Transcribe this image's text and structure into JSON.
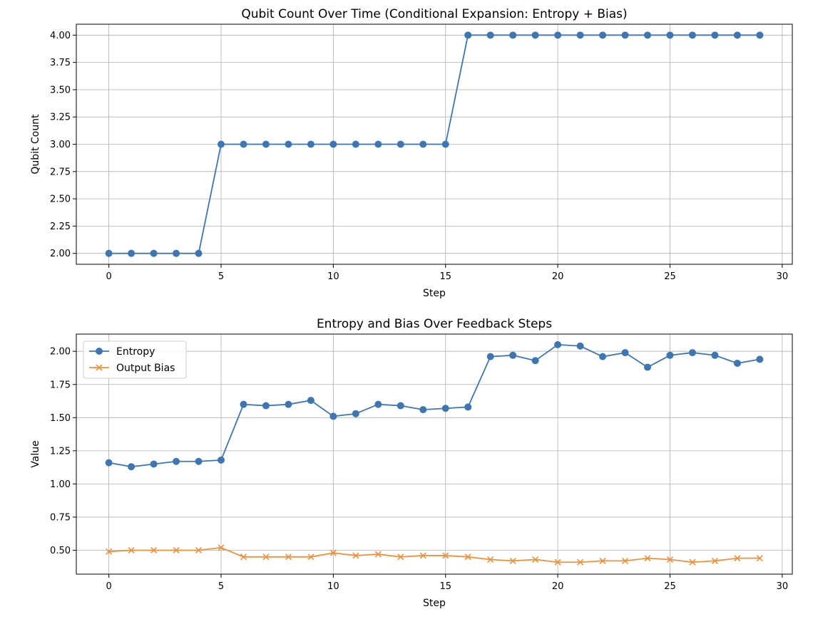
{
  "chart_data": [
    {
      "type": "line",
      "title": "Qubit Count Over Time (Conditional Expansion: Entropy + Bias)",
      "xlabel": "Step",
      "ylabel": "Qubit Count",
      "xlim": [
        -1.45,
        30.45
      ],
      "ylim": [
        1.9,
        4.1
      ],
      "xticks": [
        0,
        5,
        10,
        15,
        20,
        25,
        30
      ],
      "yticks": [
        2.0,
        2.25,
        2.5,
        2.75,
        3.0,
        3.25,
        3.5,
        3.75,
        4.0
      ],
      "ytick_labels": [
        "2.00",
        "2.25",
        "2.50",
        "2.75",
        "3.00",
        "3.25",
        "3.50",
        "3.75",
        "4.00"
      ],
      "grid": true,
      "legend": "none",
      "x": [
        0,
        1,
        2,
        3,
        4,
        5,
        6,
        7,
        8,
        9,
        10,
        11,
        12,
        13,
        14,
        15,
        16,
        17,
        18,
        19,
        20,
        21,
        22,
        23,
        24,
        25,
        26,
        27,
        28,
        29
      ],
      "series": [
        {
          "name": "",
          "color": "#3d76b2",
          "marker": "circle",
          "values": [
            2,
            2,
            2,
            2,
            2,
            3,
            3,
            3,
            3,
            3,
            3,
            3,
            3,
            3,
            3,
            3,
            4,
            4,
            4,
            4,
            4,
            4,
            4,
            4,
            4,
            4,
            4,
            4,
            4,
            4
          ]
        }
      ]
    },
    {
      "type": "line",
      "title": "Entropy and Bias Over Feedback Steps",
      "xlabel": "Step",
      "ylabel": "Value",
      "xlim": [
        -1.45,
        30.45
      ],
      "ylim": [
        0.32,
        2.13
      ],
      "xticks": [
        0,
        5,
        10,
        15,
        20,
        25,
        30
      ],
      "yticks": [
        0.5,
        0.75,
        1.0,
        1.25,
        1.5,
        1.75,
        2.0
      ],
      "ytick_labels": [
        "0.50",
        "0.75",
        "1.00",
        "1.25",
        "1.50",
        "1.75",
        "2.00"
      ],
      "grid": true,
      "legend": "upper-left",
      "x": [
        0,
        1,
        2,
        3,
        4,
        5,
        6,
        7,
        8,
        9,
        10,
        11,
        12,
        13,
        14,
        15,
        16,
        17,
        18,
        19,
        20,
        21,
        22,
        23,
        24,
        25,
        26,
        27,
        28,
        29
      ],
      "series": [
        {
          "name": "Entropy",
          "color": "#3d76b2",
          "marker": "circle",
          "values": [
            1.16,
            1.13,
            1.15,
            1.17,
            1.17,
            1.18,
            1.6,
            1.59,
            1.6,
            1.63,
            1.51,
            1.53,
            1.6,
            1.59,
            1.56,
            1.57,
            1.58,
            1.96,
            1.97,
            1.93,
            2.05,
            2.04,
            1.96,
            1.99,
            1.88,
            1.97,
            1.99,
            1.97,
            1.91,
            1.94
          ]
        },
        {
          "name": "Output Bias",
          "color": "#f1903b",
          "marker": "x",
          "values": [
            0.49,
            0.5,
            0.5,
            0.5,
            0.5,
            0.52,
            0.45,
            0.45,
            0.45,
            0.45,
            0.48,
            0.46,
            0.47,
            0.45,
            0.46,
            0.46,
            0.45,
            0.43,
            0.42,
            0.43,
            0.41,
            0.41,
            0.42,
            0.42,
            0.44,
            0.43,
            0.41,
            0.42,
            0.44,
            0.44
          ]
        }
      ]
    }
  ]
}
